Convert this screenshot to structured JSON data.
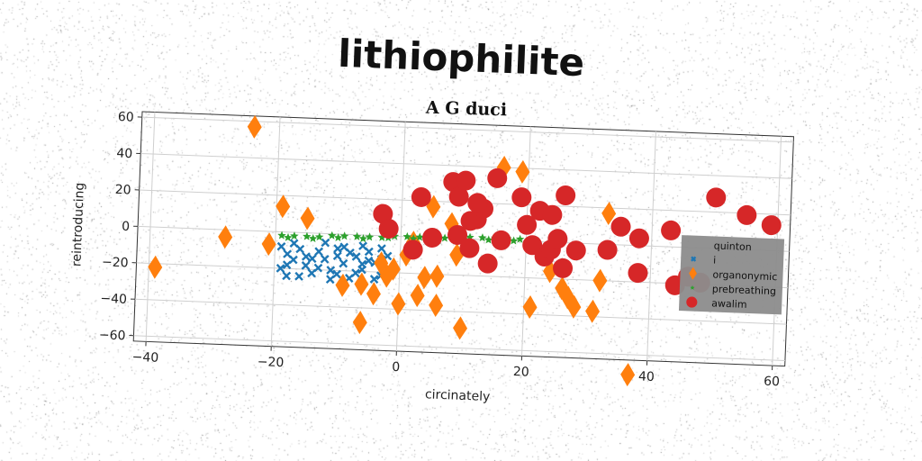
{
  "page": {
    "title": "lithiophilite",
    "subtitle": "A G duci"
  },
  "chart_data": {
    "type": "scatter",
    "title": "lithiophilite",
    "subtitle": "A G duci",
    "xlabel": "circinately",
    "ylabel": "reintroducing",
    "xlim": [
      -42,
      62
    ],
    "ylim": [
      -63,
      63
    ],
    "xticks": [
      -40,
      -20,
      0,
      20,
      40,
      60
    ],
    "yticks": [
      -60,
      -40,
      -20,
      0,
      20,
      40,
      60
    ],
    "grid": true,
    "legend_position": "right",
    "legend_entries": [
      "quinton",
      "i",
      "organonymic",
      "prebreathing",
      "awalim"
    ],
    "series": [
      {
        "name": "quinton",
        "marker": "none",
        "color": "#1f77b4",
        "points": []
      },
      {
        "name": "i",
        "marker": "x",
        "color": "#1f77b4",
        "points": [
          [
            -19,
            -8
          ],
          [
            -18,
            -12
          ],
          [
            -17,
            -15
          ],
          [
            -19,
            -20
          ],
          [
            -18,
            -24
          ],
          [
            -16,
            -9
          ],
          [
            -15,
            -18
          ],
          [
            -14,
            -22
          ],
          [
            -13,
            -10
          ],
          [
            -12,
            -14
          ],
          [
            -11,
            -20
          ],
          [
            -10,
            -8
          ],
          [
            -9,
            -16
          ],
          [
            -8,
            -24
          ],
          [
            -7,
            -12
          ],
          [
            -6,
            -19
          ],
          [
            -5,
            -9
          ],
          [
            -4,
            -15
          ],
          [
            -3,
            -22
          ],
          [
            -2,
            -11
          ],
          [
            -17,
            -6
          ],
          [
            -15,
            -13
          ],
          [
            -13,
            -19
          ],
          [
            -11,
            -25
          ],
          [
            -9,
            -7
          ],
          [
            -7,
            -21
          ],
          [
            -5,
            -14
          ],
          [
            -3,
            -7
          ],
          [
            -16,
            -24
          ],
          [
            -12,
            -5
          ],
          [
            -10,
            -22
          ],
          [
            -8,
            -10
          ],
          [
            -6,
            -6
          ],
          [
            -4,
            -24
          ],
          [
            -2,
            -18
          ],
          [
            -18,
            -18
          ],
          [
            -14,
            -14
          ],
          [
            -10,
            -12
          ],
          [
            -6,
            -16
          ],
          [
            -3,
            -13
          ]
        ]
      },
      {
        "name": "organonymic",
        "marker": "diamond",
        "color": "#ff7f0e",
        "points": [
          [
            -24,
            57
          ],
          [
            -39,
            -22
          ],
          [
            -28,
            -4
          ],
          [
            -21,
            -7
          ],
          [
            -19,
            14
          ],
          [
            -15,
            8
          ],
          [
            -9,
            -28
          ],
          [
            -6,
            -27
          ],
          [
            -6,
            -48
          ],
          [
            -4,
            -32
          ],
          [
            -2,
            -22
          ],
          [
            -1,
            -18
          ],
          [
            0,
            -37
          ],
          [
            2,
            -3
          ],
          [
            3,
            -32
          ],
          [
            4,
            -22
          ],
          [
            6,
            -21
          ],
          [
            6,
            -37
          ],
          [
            5,
            17
          ],
          [
            8,
            8
          ],
          [
            9,
            -9
          ],
          [
            10,
            -49
          ],
          [
            16,
            40
          ],
          [
            19,
            38
          ],
          [
            21,
            -36
          ],
          [
            24,
            -16
          ],
          [
            26,
            -25
          ],
          [
            27,
            -30
          ],
          [
            28,
            -35
          ],
          [
            31,
            -37
          ],
          [
            32,
            -20
          ],
          [
            33,
            17
          ],
          [
            37,
            -71
          ],
          [
            -3,
            -15
          ],
          [
            1,
            -10
          ]
        ]
      },
      {
        "name": "prebreathing",
        "marker": "star",
        "color": "#2ca02c",
        "points": [
          [
            -19,
            -2
          ],
          [
            -17,
            -2
          ],
          [
            -15,
            -2
          ],
          [
            -13,
            -2
          ],
          [
            -11,
            -1
          ],
          [
            -9,
            -1
          ],
          [
            -7,
            -1
          ],
          [
            -5,
            -1
          ],
          [
            -3,
            -1
          ],
          [
            -1,
            0
          ],
          [
            1,
            0
          ],
          [
            3,
            0
          ],
          [
            5,
            0
          ],
          [
            7,
            0
          ],
          [
            9,
            1
          ],
          [
            11,
            1
          ],
          [
            13,
            1
          ],
          [
            15,
            1
          ],
          [
            17,
            1
          ],
          [
            19,
            1
          ],
          [
            -18,
            -3
          ],
          [
            -14,
            -3
          ],
          [
            -10,
            -2
          ],
          [
            -6,
            -2
          ],
          [
            -2,
            -1
          ],
          [
            2,
            -1
          ],
          [
            6,
            -1
          ],
          [
            10,
            0
          ],
          [
            14,
            0
          ],
          [
            18,
            0
          ]
        ]
      },
      {
        "name": "awalim",
        "marker": "circle",
        "color": "#d62728",
        "points": [
          [
            -3,
            12
          ],
          [
            -2,
            4
          ],
          [
            2,
            -7
          ],
          [
            3,
            22
          ],
          [
            5,
            0
          ],
          [
            8,
            31
          ],
          [
            9,
            2
          ],
          [
            9,
            23
          ],
          [
            10,
            32
          ],
          [
            11,
            10
          ],
          [
            11,
            -5
          ],
          [
            12,
            11
          ],
          [
            13,
            17
          ],
          [
            14,
            -13
          ],
          [
            15,
            34
          ],
          [
            19,
            24
          ],
          [
            20,
            9
          ],
          [
            21,
            -2
          ],
          [
            22,
            17
          ],
          [
            23,
            -8
          ],
          [
            24,
            15
          ],
          [
            24,
            -4
          ],
          [
            25,
            2
          ],
          [
            26,
            -14
          ],
          [
            26,
            26
          ],
          [
            28,
            -4
          ],
          [
            33,
            -3
          ],
          [
            35,
            10
          ],
          [
            38,
            4
          ],
          [
            38,
            -15
          ],
          [
            43,
            9
          ],
          [
            44,
            -21
          ],
          [
            46,
            -16
          ],
          [
            48,
            -19
          ],
          [
            50,
            28
          ],
          [
            55,
            19
          ],
          [
            59,
            14
          ],
          [
            12,
            20
          ],
          [
            16,
            0
          ]
        ]
      }
    ]
  }
}
